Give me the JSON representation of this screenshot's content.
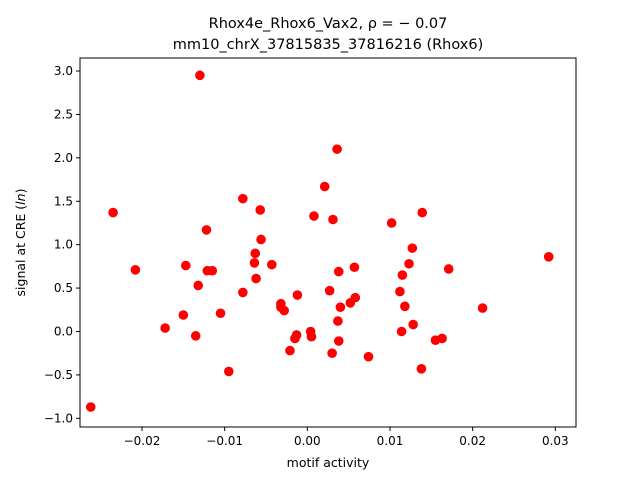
{
  "chart_data": {
    "type": "scatter",
    "title_line1": "Rhox4e_Rhox6_Vax2, ρ = − 0.07",
    "title_line2": "mm10_chrX_37815835_37816216 (Rhox6)",
    "xlabel": "motif activity",
    "ylabel": "signal at CRE (",
    "ylabel_italic": "ln",
    "ylabel_tail": ")",
    "xlim": [
      -0.0275,
      0.0325
    ],
    "ylim": [
      -1.1,
      3.15
    ],
    "xticks": [
      -0.02,
      -0.01,
      0.0,
      0.01,
      0.02,
      0.03
    ],
    "xtick_labels": [
      "−0.02",
      "−0.01",
      "0.00",
      "0.01",
      "0.02",
      "0.03"
    ],
    "yticks": [
      -1.0,
      -0.5,
      0.0,
      0.5,
      1.0,
      1.5,
      2.0,
      2.5,
      3.0
    ],
    "ytick_labels": [
      "−1.0",
      "−0.5",
      "0.0",
      "0.5",
      "1.0",
      "1.5",
      "2.0",
      "2.5",
      "3.0"
    ],
    "marker_color": "#ff0000",
    "x": [
      -0.0262,
      -0.0235,
      -0.0208,
      -0.0172,
      -0.015,
      -0.0147,
      -0.0135,
      -0.0132,
      -0.013,
      -0.0122,
      -0.0121,
      -0.0115,
      -0.0105,
      -0.0095,
      -0.0078,
      -0.0078,
      -0.0064,
      -0.0063,
      -0.0062,
      -0.0057,
      -0.0056,
      -0.0043,
      -0.0032,
      -0.0032,
      -0.0028,
      -0.0021,
      -0.0015,
      -0.0013,
      -0.0012,
      0.0004,
      0.0005,
      0.0008,
      0.0021,
      0.0027,
      0.003,
      0.0031,
      0.0036,
      0.0037,
      0.0038,
      0.0038,
      0.004,
      0.0052,
      0.0057,
      0.0058,
      0.0074,
      0.0102,
      0.0112,
      0.0114,
      0.0115,
      0.0118,
      0.0123,
      0.0127,
      0.0128,
      0.0138,
      0.0139,
      0.0155,
      0.0163,
      0.0171,
      0.0212,
      0.0292
    ],
    "y": [
      -0.87,
      1.37,
      0.71,
      0.04,
      0.19,
      0.76,
      -0.05,
      0.53,
      2.95,
      1.17,
      0.7,
      0.7,
      0.21,
      -0.46,
      1.53,
      0.45,
      0.79,
      0.9,
      0.61,
      1.4,
      1.06,
      0.77,
      0.32,
      0.28,
      0.24,
      -0.22,
      -0.08,
      -0.04,
      0.42,
      0.0,
      -0.06,
      1.33,
      1.67,
      0.47,
      -0.25,
      1.29,
      2.1,
      0.12,
      0.69,
      -0.11,
      0.28,
      0.33,
      0.74,
      0.39,
      -0.29,
      1.25,
      0.46,
      0.0,
      0.65,
      0.29,
      0.78,
      0.96,
      0.08,
      -0.43,
      1.37,
      -0.1,
      -0.08,
      0.72,
      0.27,
      0.86
    ]
  }
}
